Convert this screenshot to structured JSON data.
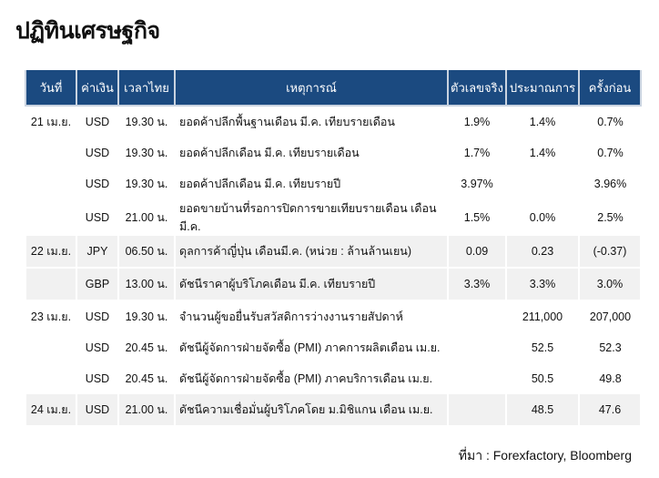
{
  "title": "ปฏิทินเศรษฐกิจ",
  "headers": [
    "วันที่",
    "ค่าเงิน",
    "เวลาไทย",
    "เหตุการณ์",
    "ตัวเลขจริง",
    "ประมาณการ",
    "ครั้งก่อน"
  ],
  "rows": [
    {
      "date": "21 เม.ย.",
      "cur": "USD",
      "time": "19.30 น.",
      "event": "ยอดค้าปลีกพื้นฐานเดือน มี.ค. เทียบรายเดือน",
      "actual": "1.9%",
      "forecast": "1.4%",
      "previous": "0.7%"
    },
    {
      "date": "",
      "cur": "USD",
      "time": "19.30 น.",
      "event": "ยอดค้าปลีกเดือน มี.ค. เทียบรายเดือน",
      "actual": "1.7%",
      "forecast": "1.4%",
      "previous": "0.7%"
    },
    {
      "date": "",
      "cur": "USD",
      "time": "19.30 น.",
      "event": "ยอดค้าปลีกเดือน มี.ค. เทียบรายปี",
      "actual": "3.97%",
      "forecast": "",
      "previous": "3.96%"
    },
    {
      "date": "",
      "cur": "USD",
      "time": "21.00 น.",
      "event": "ยอดขายบ้านที่รอการปิดการขายเทียบรายเดือน เดือนมี.ค.",
      "actual": "1.5%",
      "forecast": "0.0%",
      "previous": "2.5%"
    },
    {
      "date": "22 เม.ย.",
      "cur": "JPY",
      "time": "06.50 น.",
      "event": "ดุลการค้าญี่ปุ่น เดือนมี.ค. (หน่วย : ล้านล้านเยน)",
      "actual": "0.09",
      "forecast": "0.23",
      "previous": "(-0.37)"
    },
    {
      "date": "",
      "cur": "GBP",
      "time": "13.00 น.",
      "event": "ดัชนีราคาผู้บริโภคเดือน มี.ค. เทียบรายปี",
      "actual": "3.3%",
      "forecast": "3.3%",
      "previous": "3.0%"
    },
    {
      "date": "23 เม.ย.",
      "cur": "USD",
      "time": "19.30 น.",
      "event": "จำนวนผู้ขอยื่นรับสวัสดิการว่างงานรายสัปดาห์",
      "actual": "",
      "forecast": "211,000",
      "previous": "207,000"
    },
    {
      "date": "",
      "cur": "USD",
      "time": "20.45 น.",
      "event": "ดัชนีผู้จัดการฝ่ายจัดซื้อ (PMI) ภาคการผลิตเดือน เม.ย.",
      "actual": "",
      "forecast": "52.5",
      "previous": "52.3"
    },
    {
      "date": "",
      "cur": "USD",
      "time": "20.45 น.",
      "event": "ดัชนีผู้จัดการฝ่ายจัดซื้อ (PMI) ภาคบริการเดือน เม.ย.",
      "actual": "",
      "forecast": "50.5",
      "previous": "49.8"
    },
    {
      "date": "24 เม.ย.",
      "cur": "USD",
      "time": "21.00 น.",
      "event": "ดัชนีความเชื่อมั่นผู้บริโภคโดย ม.มิชิแกน เดือน เม.ย.",
      "actual": "",
      "forecast": "48.5",
      "previous": "47.6"
    }
  ],
  "source": "ที่มา : Forexfactory, Bloomberg",
  "colors": {
    "header_bg": "#1b4a80",
    "shaded_row": "#f1f1f1"
  }
}
